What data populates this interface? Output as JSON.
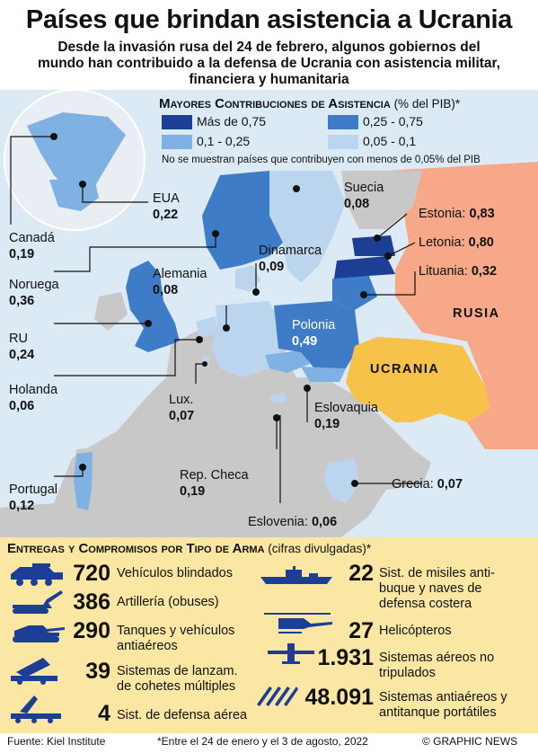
{
  "title": "Países que brindan asistencia a Ucrania",
  "subtitle": "Desde la invasión rusa del 24 de febrero, algunos gobiernos del mundo han contribuido a la defensa de Ucrania con asistencia militar, financiera y humanitaria",
  "legend": {
    "title": "Mayores Contribuciones de Asistencia",
    "title_suffix": "(% del PIB)*",
    "items": [
      {
        "label": "Más de 0,75",
        "color": "#1c3f95"
      },
      {
        "label": "0,25 - 0,75",
        "color": "#3e7cc7"
      },
      {
        "label": "0,1 - 0,25",
        "color": "#7fb2e3"
      },
      {
        "label": "0,05 - 0,1",
        "color": "#bcd5ef"
      }
    ],
    "note": "No se muestran países que contribuyen con menos de 0,05% del PIB"
  },
  "countries": [
    {
      "name": "EUA",
      "value": "0,22"
    },
    {
      "name": "Canadá",
      "value": "0,19"
    },
    {
      "name": "Noruega",
      "value": "0,36"
    },
    {
      "name": "RU",
      "value": "0,24"
    },
    {
      "name": "Holanda",
      "value": "0,06"
    },
    {
      "name": "Portugal",
      "value": "0,12"
    },
    {
      "name": "Alemania",
      "value": "0,08"
    },
    {
      "name": "Lux.",
      "value": "0,07"
    },
    {
      "name": "Rep. Checa",
      "value": "0,19"
    },
    {
      "name": "Eslovenia:",
      "value": "0,06"
    },
    {
      "name": "Dinamarca",
      "value": "0,09"
    },
    {
      "name": "Suecia",
      "value": "0,08"
    },
    {
      "name": "Polonia",
      "value": "0,49"
    },
    {
      "name": "Eslovaquia",
      "value": "0,19"
    },
    {
      "name": "Grecia:",
      "value": "0,07"
    },
    {
      "name": "Estonia:",
      "value": "0,83"
    },
    {
      "name": "Letonia:",
      "value": "0,80"
    },
    {
      "name": "Lituania:",
      "value": "0,32"
    }
  ],
  "map_labels": {
    "russia": "RUSIA",
    "ukraine": "UCRANIA"
  },
  "weapons": {
    "title": "Entregas y Compromisos por Tipo de Arma",
    "title_suffix": "(cifras divulgadas)*",
    "items": [
      {
        "icon": "armored-vehicle-icon",
        "number": "720",
        "label": "Vehículos blindados"
      },
      {
        "icon": "howitzer-icon",
        "number": "386",
        "label": "Artillería (obuses)"
      },
      {
        "icon": "tank-icon",
        "number": "290",
        "label": "Tanques y vehículos antiaéreos"
      },
      {
        "icon": "rocket-launcher-icon",
        "number": "39",
        "label": "Sistemas de lanzam. de cohetes múltiples"
      },
      {
        "icon": "air-defense-icon",
        "number": "4",
        "label": "Sist. de defensa aérea"
      },
      {
        "icon": "warship-icon",
        "number": "22",
        "label": "Sist. de misiles anti-buque y naves de defensa costera"
      },
      {
        "icon": "helicopter-icon",
        "number": "27",
        "label": "Helicópteros"
      },
      {
        "icon": "drone-icon",
        "number": "1.931",
        "label": "Sistemas aéreos no tripulados"
      },
      {
        "icon": "missiles-icon",
        "number": "48.091",
        "label": "Sistemas antiaéreos y antitanque portátiles"
      }
    ]
  },
  "footer": {
    "source": "Fuente: Kiel Institute",
    "note": "*Entre el 24 de enero y el 3 de agosto, 2022",
    "credit": "© GRAPHIC NEWS"
  }
}
